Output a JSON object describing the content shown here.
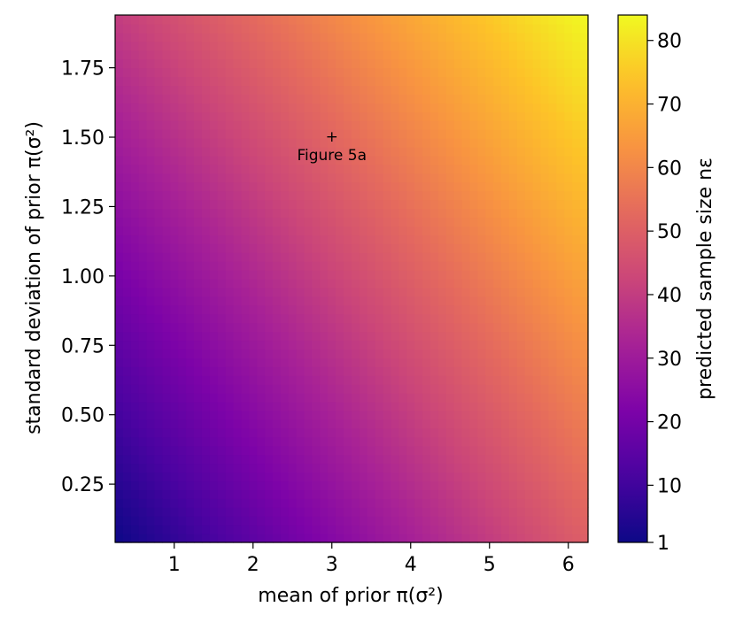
{
  "chart_data": {
    "type": "heatmap",
    "title": "",
    "xlabel": "mean of prior π(σ²)",
    "ylabel": "standard deviation of prior π(σ²)",
    "colorbar_label": "predicted sample size nε",
    "colormap": "plasma",
    "xlim": [
      0.25,
      6.25
    ],
    "ylim": [
      0.04,
      1.94
    ],
    "x_ticks": [
      1,
      2,
      3,
      4,
      5,
      6
    ],
    "x_tick_labels": [
      "1",
      "2",
      "3",
      "4",
      "5",
      "6"
    ],
    "y_ticks": [
      0.25,
      0.5,
      0.75,
      1.0,
      1.25,
      1.5,
      1.75
    ],
    "y_tick_labels": [
      "0.25",
      "0.50",
      "0.75",
      "1.00",
      "1.25",
      "1.50",
      "1.75"
    ],
    "colorbar_range": [
      1,
      84
    ],
    "colorbar_ticks": [
      1,
      10,
      20,
      30,
      40,
      50,
      60,
      70,
      80
    ],
    "colorbar_tick_labels": [
      "1",
      "10",
      "20",
      "30",
      "40",
      "50",
      "60",
      "70",
      "80"
    ],
    "corner_values": {
      "low_mean_low_sd": 1,
      "high_mean_low_sd": 50,
      "low_mean_high_sd": 40,
      "high_mean_high_sd": 84
    },
    "annotation": {
      "x": 3.0,
      "y": 1.5,
      "marker": "+",
      "label": "Figure 5a"
    }
  }
}
